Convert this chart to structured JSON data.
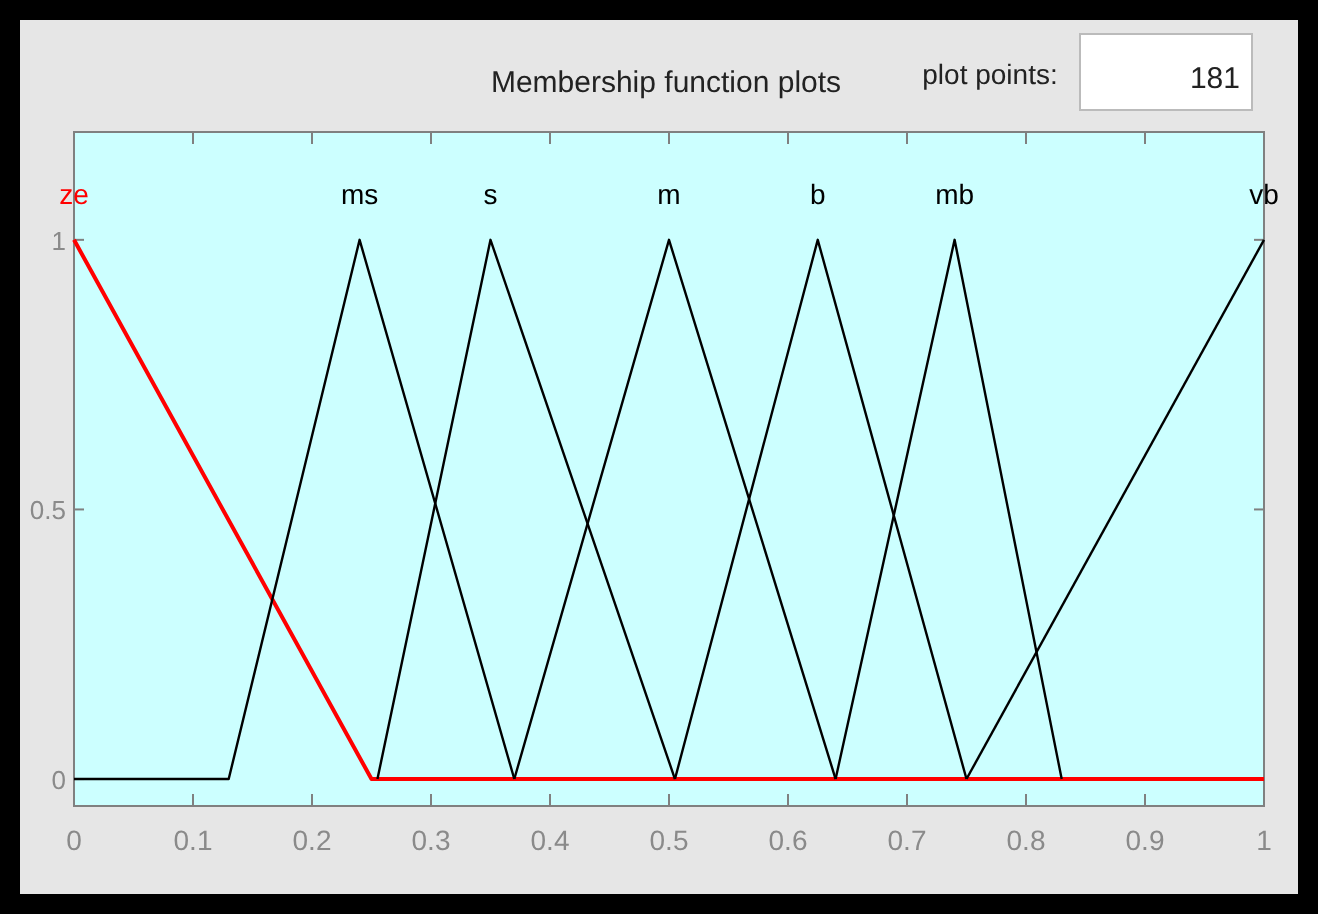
{
  "chart_data": {
    "type": "line",
    "title": "Membership function plots",
    "annotations": [
      "plot points:",
      "181"
    ],
    "xlim": [
      0,
      1
    ],
    "xticks": [
      0,
      0.1,
      0.2,
      0.3,
      0.4,
      0.5,
      0.6,
      0.7,
      0.8,
      0.9,
      1
    ],
    "ylim": [
      -0.05,
      1.2
    ],
    "yticks": [
      0,
      0.5,
      1
    ],
    "grid": false,
    "marker": "none",
    "line_style": "solid",
    "series": [
      {
        "name": "ze",
        "color": "#ff0000",
        "x": [
          0,
          0.25,
          1
        ],
        "values": [
          1,
          0,
          0
        ]
      },
      {
        "name": "ms",
        "color": "#000000",
        "x": [
          0,
          0.13,
          0.24,
          0.37
        ],
        "values": [
          0,
          0,
          1,
          0
        ]
      },
      {
        "name": "s",
        "color": "#000000",
        "x": [
          0.255,
          0.35,
          0.505
        ],
        "values": [
          0,
          1,
          0
        ]
      },
      {
        "name": "m",
        "color": "#000000",
        "x": [
          0.37,
          0.5,
          0.64
        ],
        "values": [
          0,
          1,
          0
        ]
      },
      {
        "name": "b",
        "color": "#000000",
        "x": [
          0.505,
          0.625,
          0.75
        ],
        "values": [
          0,
          1,
          0
        ]
      },
      {
        "name": "mb",
        "color": "#000000",
        "x": [
          0.64,
          0.74,
          0.83
        ],
        "values": [
          0,
          1,
          0
        ]
      },
      {
        "name": "vb",
        "color": "#000000",
        "x": [
          0.75,
          1
        ],
        "values": [
          0,
          1
        ]
      }
    ]
  }
}
